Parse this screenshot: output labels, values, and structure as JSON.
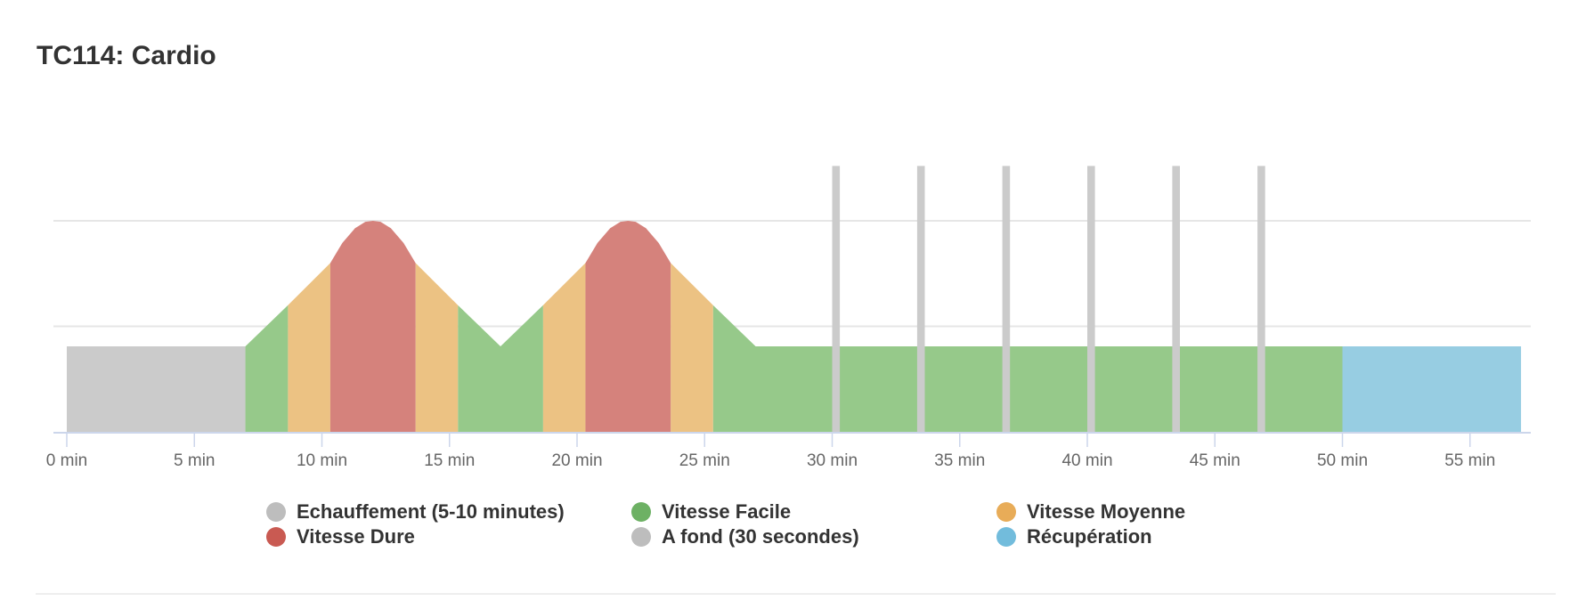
{
  "chart_data": {
    "type": "area",
    "title": "TC114: Cardio",
    "xlabel": "",
    "ylabel": "",
    "xlim": [
      0,
      58
    ],
    "ylim": [
      0,
      2.5
    ],
    "grid": true,
    "y_gridlines": [
      1,
      2
    ],
    "x_ticks": [
      0,
      5,
      10,
      15,
      20,
      25,
      30,
      35,
      40,
      45,
      50,
      55
    ],
    "x_tick_labels": [
      "0 min",
      "5 min",
      "10 min",
      "15 min",
      "20 min",
      "25 min",
      "30 min",
      "35 min",
      "40 min",
      "45 min",
      "50 min",
      "55 min"
    ],
    "legend_position": "bottom",
    "series": [
      {
        "name": "Echauffement (5-10 minutes)",
        "color": "#bdbdbd",
        "fill": "#cbcbcb",
        "kind": "area",
        "segments": [
          [
            [
              0,
              0.81
            ],
            [
              7,
              0.81
            ]
          ]
        ]
      },
      {
        "name": "Vitesse Facile",
        "color": "#6db164",
        "fill": "#96c98a",
        "kind": "area",
        "segments": [
          [
            [
              7,
              0.81
            ],
            [
              8.67,
              1.2
            ]
          ],
          [
            [
              15.33,
              1.2
            ],
            [
              17,
              0.81
            ],
            [
              18.67,
              1.2
            ]
          ],
          [
            [
              25.33,
              1.2
            ],
            [
              27,
              0.81
            ],
            [
              50,
              0.81
            ]
          ]
        ]
      },
      {
        "name": "Vitesse Moyenne",
        "color": "#e8ac58",
        "fill": "#ecc283",
        "kind": "area",
        "segments": [
          [
            [
              8.67,
              1.2
            ],
            [
              10.33,
              1.6
            ]
          ],
          [
            [
              13.67,
              1.6
            ],
            [
              15.33,
              1.2
            ]
          ],
          [
            [
              18.67,
              1.2
            ],
            [
              20.33,
              1.6
            ]
          ],
          [
            [
              23.67,
              1.6
            ],
            [
              25.33,
              1.2
            ]
          ]
        ]
      },
      {
        "name": "Vitesse Dure",
        "color": "#c95a52",
        "fill": "#d5827c",
        "kind": "area",
        "segments": [
          [
            [
              10.33,
              1.6
            ],
            [
              10.8,
              1.79
            ],
            [
              11.3,
              1.93
            ],
            [
              11.7,
              1.99
            ],
            [
              12,
              2.0
            ],
            [
              12.3,
              1.99
            ],
            [
              12.7,
              1.93
            ],
            [
              13.2,
              1.79
            ],
            [
              13.67,
              1.6
            ]
          ],
          [
            [
              20.33,
              1.6
            ],
            [
              20.8,
              1.79
            ],
            [
              21.3,
              1.93
            ],
            [
              21.7,
              1.99
            ],
            [
              22,
              2.0
            ],
            [
              22.3,
              1.99
            ],
            [
              22.7,
              1.93
            ],
            [
              23.2,
              1.79
            ],
            [
              23.67,
              1.6
            ]
          ]
        ]
      },
      {
        "name": "A fond (30 secondes)",
        "color": "#bdbdbd",
        "fill": "#cbcbcb",
        "kind": "column",
        "starts": [
          30,
          33.33,
          36.67,
          40,
          43.33,
          46.67
        ],
        "duration": 0.3,
        "value": 2.52
      },
      {
        "name": "Récupération",
        "color": "#72bcdc",
        "fill": "#97cde2",
        "kind": "area",
        "segments": [
          [
            [
              50,
              0.81
            ],
            [
              57,
              0.81
            ]
          ]
        ]
      }
    ]
  }
}
